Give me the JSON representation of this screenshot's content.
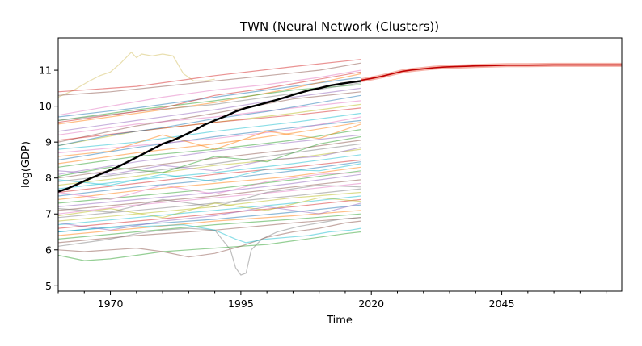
{
  "chart_data": {
    "type": "line",
    "title": "TWN (Neural Network (Clusters))",
    "xlabel": "Time",
    "ylabel": "log(GDP)",
    "xlim": [
      1960,
      2068
    ],
    "ylim": [
      4.85,
      11.9
    ],
    "x_ticks": [
      1970,
      1995,
      2020,
      2045
    ],
    "y_ticks": [
      5,
      6,
      7,
      8,
      9,
      10,
      11
    ],
    "grid": false,
    "legend": "none",
    "highlight_color": "#000000",
    "forecast_color": "#c00000",
    "forecast_band_color": "#f08070",
    "highlight_series": {
      "name": "TWN",
      "x": [
        1960,
        1962,
        1964,
        1966,
        1968,
        1970,
        1972,
        1974,
        1976,
        1978,
        1980,
        1982,
        1984,
        1986,
        1988,
        1990,
        1992,
        1994,
        1996,
        1998,
        2000,
        2002,
        2004,
        2006,
        2008,
        2010,
        2012,
        2014,
        2016,
        2018
      ],
      "y": [
        7.62,
        7.72,
        7.85,
        7.98,
        8.1,
        8.22,
        8.35,
        8.5,
        8.65,
        8.8,
        8.95,
        9.05,
        9.18,
        9.32,
        9.48,
        9.6,
        9.72,
        9.85,
        9.95,
        10.02,
        10.1,
        10.18,
        10.27,
        10.36,
        10.44,
        10.5,
        10.57,
        10.62,
        10.66,
        10.7
      ]
    },
    "forecast_series": {
      "x": [
        2018,
        2020,
        2022,
        2024,
        2026,
        2028,
        2030,
        2032,
        2034,
        2036,
        2038,
        2040,
        2043,
        2046,
        2050,
        2055,
        2060,
        2064,
        2068
      ],
      "y": [
        10.72,
        10.77,
        10.83,
        10.9,
        10.97,
        11.01,
        11.04,
        11.07,
        11.09,
        11.1,
        11.11,
        11.12,
        11.13,
        11.14,
        11.14,
        11.15,
        11.15,
        11.15,
        11.15
      ]
    },
    "background_series": [
      {
        "color": "#d4c060",
        "x": [
          1960,
          1963,
          1966,
          1968,
          1970,
          1972,
          1974,
          1975,
          1976,
          1978,
          1980,
          1982,
          1984,
          1986,
          1988,
          1990
        ],
        "y": [
          10.25,
          10.45,
          10.7,
          10.85,
          10.95,
          11.2,
          11.5,
          11.35,
          11.45,
          11.4,
          11.45,
          11.4,
          10.9,
          10.7,
          10.7,
          10.75
        ]
      },
      {
        "color": "#d62728",
        "x": [
          1960,
          1975,
          1990,
          2005,
          2018
        ],
        "y": [
          10.4,
          10.55,
          10.85,
          11.1,
          11.3
        ]
      },
      {
        "color": "#1f77b4",
        "x": [
          1960,
          1975,
          1990,
          2005,
          2018
        ],
        "y": [
          9.7,
          9.95,
          10.25,
          10.55,
          10.8
        ]
      },
      {
        "color": "#ff7f0e",
        "x": [
          1960,
          1975,
          1990,
          2005,
          2018
        ],
        "y": [
          9.5,
          9.8,
          10.1,
          10.5,
          10.9
        ]
      },
      {
        "color": "#2ca02c",
        "x": [
          1960,
          1975,
          1990,
          2005,
          2018
        ],
        "y": [
          9.6,
          9.9,
          10.15,
          10.45,
          10.6
        ]
      },
      {
        "color": "#9467bd",
        "x": [
          1960,
          1975,
          1990,
          2005,
          2018
        ],
        "y": [
          9.3,
          9.6,
          9.9,
          10.25,
          10.5
        ]
      },
      {
        "color": "#8c564b",
        "x": [
          1960,
          1975,
          1990,
          2005,
          2018
        ],
        "y": [
          9.0,
          9.45,
          9.8,
          10.2,
          10.4
        ]
      },
      {
        "color": "#e377c2",
        "x": [
          1960,
          1975,
          1990,
          2005,
          2018
        ],
        "y": [
          9.2,
          9.5,
          9.7,
          9.95,
          10.15
        ]
      },
      {
        "color": "#7f7f7f",
        "x": [
          1960,
          1975,
          1990,
          2005,
          2018
        ],
        "y": [
          9.6,
          9.85,
          10.05,
          10.35,
          10.65
        ]
      },
      {
        "color": "#bcbd22",
        "x": [
          1960,
          1975,
          1990,
          2005,
          2018
        ],
        "y": [
          8.9,
          9.3,
          9.55,
          9.8,
          10.05
        ]
      },
      {
        "color": "#17becf",
        "x": [
          1960,
          1975,
          1990,
          2005,
          2018
        ],
        "y": [
          8.8,
          9.0,
          9.3,
          9.55,
          9.8
        ]
      },
      {
        "color": "#d62728",
        "x": [
          1960,
          1975,
          1990,
          2005,
          2018
        ],
        "y": [
          9.05,
          9.3,
          9.55,
          9.75,
          9.95
        ]
      },
      {
        "color": "#1f77b4",
        "x": [
          1960,
          1975,
          1990,
          2005,
          2018
        ],
        "y": [
          8.5,
          8.85,
          9.15,
          9.4,
          9.6
        ]
      },
      {
        "color": "#ff7f0e",
        "x": [
          1960,
          1975,
          1990,
          2005,
          2018
        ],
        "y": [
          8.4,
          8.7,
          8.95,
          9.25,
          9.55
        ]
      },
      {
        "color": "#2ca02c",
        "x": [
          1960,
          1975,
          1990,
          2005,
          2018
        ],
        "y": [
          8.3,
          8.6,
          8.8,
          9.05,
          9.35
        ]
      },
      {
        "color": "#9467bd",
        "x": [
          1960,
          1975,
          1990,
          2005,
          2018
        ],
        "y": [
          8.1,
          8.45,
          8.75,
          9.0,
          9.2
        ]
      },
      {
        "color": "#8c564b",
        "x": [
          1960,
          1975,
          1990,
          2005,
          2018
        ],
        "y": [
          8.0,
          8.3,
          8.55,
          8.8,
          9.05
        ]
      },
      {
        "color": "#e377c2",
        "x": [
          1960,
          1975,
          1990,
          2005,
          2018
        ],
        "y": [
          8.7,
          8.9,
          9.1,
          9.35,
          9.7
        ]
      },
      {
        "color": "#7f7f7f",
        "x": [
          1960,
          1975,
          1990,
          2005,
          2018
        ],
        "y": [
          7.9,
          8.15,
          8.4,
          8.7,
          8.95
        ]
      },
      {
        "color": "#bcbd22",
        "x": [
          1960,
          1975,
          1990,
          2005,
          2018
        ],
        "y": [
          7.8,
          8.05,
          8.35,
          8.55,
          8.8
        ]
      },
      {
        "color": "#17becf",
        "x": [
          1960,
          1975,
          1990,
          2005,
          2018
        ],
        "y": [
          7.7,
          7.95,
          8.15,
          8.4,
          8.65
        ]
      },
      {
        "color": "#d62728",
        "x": [
          1960,
          1975,
          1990,
          2005,
          2018
        ],
        "y": [
          7.6,
          7.85,
          8.1,
          8.3,
          8.5
        ]
      },
      {
        "color": "#1f77b4",
        "x": [
          1960,
          1975,
          1990,
          2005,
          2018
        ],
        "y": [
          7.5,
          7.75,
          7.95,
          8.2,
          8.45
        ]
      },
      {
        "color": "#ff7f0e",
        "x": [
          1960,
          1975,
          1990,
          2005,
          2018
        ],
        "y": [
          7.4,
          7.65,
          7.85,
          8.05,
          8.3
        ]
      },
      {
        "color": "#2ca02c",
        "x": [
          1960,
          1975,
          1990,
          2005,
          2018
        ],
        "y": [
          7.3,
          7.5,
          7.7,
          7.95,
          8.2
        ]
      },
      {
        "color": "#9467bd",
        "x": [
          1960,
          1975,
          1990,
          2005,
          2018
        ],
        "y": [
          7.2,
          7.4,
          7.6,
          7.85,
          8.1
        ]
      },
      {
        "color": "#8c564b",
        "x": [
          1960,
          1975,
          1990,
          2005,
          2018
        ],
        "y": [
          7.1,
          7.3,
          7.5,
          7.75,
          7.95
        ]
      },
      {
        "color": "#e377c2",
        "x": [
          1960,
          1975,
          1990,
          2005,
          2018
        ],
        "y": [
          7.0,
          7.25,
          7.45,
          7.65,
          7.85
        ]
      },
      {
        "color": "#7f7f7f",
        "x": [
          1960,
          1975,
          1990,
          2005,
          2018
        ],
        "y": [
          6.9,
          7.1,
          7.3,
          7.5,
          7.7
        ]
      },
      {
        "color": "#bcbd22",
        "x": [
          1960,
          1975,
          1990,
          2005,
          2018
        ],
        "y": [
          6.8,
          7.0,
          7.2,
          7.45,
          7.6
        ]
      },
      {
        "color": "#17becf",
        "x": [
          1960,
          1975,
          1990,
          2005,
          2018
        ],
        "y": [
          6.7,
          6.9,
          7.1,
          7.3,
          7.5
        ]
      },
      {
        "color": "#d62728",
        "x": [
          1960,
          1975,
          1990,
          2005,
          2018
        ],
        "y": [
          6.6,
          6.8,
          7.0,
          7.2,
          7.4
        ]
      },
      {
        "color": "#1f77b4",
        "x": [
          1960,
          1975,
          1990,
          2005,
          2018
        ],
        "y": [
          6.5,
          6.7,
          6.85,
          7.05,
          7.25
        ]
      },
      {
        "color": "#ff7f0e",
        "x": [
          1960,
          1975,
          1990,
          2005,
          2018
        ],
        "y": [
          6.4,
          6.6,
          6.8,
          6.95,
          7.1
        ]
      },
      {
        "color": "#2ca02c",
        "x": [
          1960,
          1975,
          1990,
          2005,
          2018
        ],
        "y": [
          6.3,
          6.5,
          6.7,
          6.85,
          7.0
        ]
      },
      {
        "color": "#8c564b",
        "x": [
          1960,
          1975,
          1990,
          2005,
          2018
        ],
        "y": [
          6.2,
          6.4,
          6.55,
          6.75,
          6.9
        ]
      },
      {
        "color": "#7f7f7f",
        "x": [
          1960,
          1965,
          1970,
          1975,
          1980,
          1985,
          1990,
          1993,
          1994,
          1995,
          1996,
          1997,
          1999,
          2002,
          2006,
          2010,
          2014,
          2018
        ],
        "y": [
          6.1,
          6.2,
          6.3,
          6.45,
          6.55,
          6.6,
          6.55,
          6.0,
          5.5,
          5.3,
          5.35,
          6.0,
          6.3,
          6.5,
          6.65,
          6.75,
          6.85,
          6.9
        ]
      },
      {
        "color": "#2ca02c",
        "x": [
          1960,
          1965,
          1970,
          1975,
          1980,
          1985,
          1990,
          1995,
          2000,
          2005,
          2010,
          2015,
          2018
        ],
        "y": [
          5.85,
          5.7,
          5.75,
          5.85,
          5.95,
          6.0,
          6.05,
          6.1,
          6.15,
          6.25,
          6.35,
          6.45,
          6.5
        ]
      },
      {
        "color": "#8c564b",
        "x": [
          1960,
          1965,
          1970,
          1975,
          1980,
          1985,
          1990,
          1995,
          2000,
          2005,
          2010,
          2015,
          2018
        ],
        "y": [
          6.0,
          5.95,
          6.0,
          6.05,
          5.95,
          5.8,
          5.9,
          6.1,
          6.35,
          6.5,
          6.6,
          6.75,
          6.8
        ]
      },
      {
        "color": "#17becf",
        "x": [
          1960,
          1968,
          1976,
          1984,
          1990,
          1994,
          1996,
          2000,
          2004,
          2008,
          2012,
          2016,
          2018
        ],
        "y": [
          6.5,
          6.6,
          6.65,
          6.7,
          6.55,
          6.3,
          6.2,
          6.3,
          6.35,
          6.4,
          6.5,
          6.55,
          6.6
        ]
      },
      {
        "color": "#9467bd",
        "x": [
          1960,
          1970,
          1980,
          1990,
          2000,
          2010,
          2018
        ],
        "y": [
          8.2,
          8.1,
          8.35,
          8.2,
          8.5,
          8.6,
          8.85
        ]
      },
      {
        "color": "#e377c2",
        "x": [
          1960,
          1970,
          1980,
          1990,
          2000,
          2010,
          2018
        ],
        "y": [
          7.6,
          7.4,
          7.8,
          7.55,
          7.9,
          8.1,
          8.15
        ]
      },
      {
        "color": "#bcbd22",
        "x": [
          1960,
          1970,
          1980,
          1990,
          2000,
          2010,
          2018
        ],
        "y": [
          6.95,
          7.15,
          6.9,
          7.3,
          7.1,
          7.45,
          7.35
        ]
      },
      {
        "color": "#d62728",
        "x": [
          1960,
          1970,
          1980,
          1990,
          2000,
          2010,
          2018
        ],
        "y": [
          9.55,
          9.75,
          9.95,
          10.3,
          10.5,
          10.75,
          10.95
        ]
      },
      {
        "color": "#1f77b4",
        "x": [
          1960,
          1970,
          1980,
          1990,
          2000,
          2010,
          2018
        ],
        "y": [
          8.9,
          9.2,
          9.4,
          9.65,
          9.85,
          10.1,
          10.3
        ]
      },
      {
        "color": "#ff7f0e",
        "x": [
          1960,
          1970,
          1980,
          1990,
          2000,
          2010,
          2018
        ],
        "y": [
          8.6,
          8.75,
          9.2,
          8.8,
          9.3,
          9.1,
          9.5
        ]
      },
      {
        "color": "#7f7f7f",
        "x": [
          1960,
          1970,
          1980,
          1990,
          2000,
          2010,
          2018
        ],
        "y": [
          7.15,
          7.05,
          7.4,
          7.2,
          7.6,
          7.8,
          7.75
        ]
      },
      {
        "color": "#2ca02c",
        "x": [
          1960,
          1970,
          1980,
          1990,
          2000,
          2010,
          2018
        ],
        "y": [
          8.05,
          8.3,
          8.15,
          8.6,
          8.45,
          8.95,
          9.15
        ]
      },
      {
        "color": "#9467bd",
        "x": [
          1960,
          1970,
          1980,
          1990,
          2000,
          2010,
          2018
        ],
        "y": [
          6.75,
          6.55,
          6.8,
          6.95,
          7.2,
          7.0,
          7.3
        ]
      },
      {
        "color": "#17becf",
        "x": [
          1960,
          1970,
          1980,
          1990,
          2000,
          2010,
          2018
        ],
        "y": [
          7.95,
          7.8,
          8.1,
          7.9,
          8.25,
          8.2,
          8.4
        ]
      },
      {
        "color": "#8c564b",
        "x": [
          1960,
          1970,
          1980,
          1990,
          2000,
          2010,
          2018
        ],
        "y": [
          10.3,
          10.4,
          10.55,
          10.7,
          10.85,
          11.0,
          11.2
        ]
      },
      {
        "color": "#e377c2",
        "x": [
          1960,
          1970,
          1980,
          1990,
          2000,
          2010,
          2018
        ],
        "y": [
          9.75,
          10.0,
          10.25,
          10.45,
          10.6,
          10.8,
          11.0
        ]
      }
    ]
  }
}
